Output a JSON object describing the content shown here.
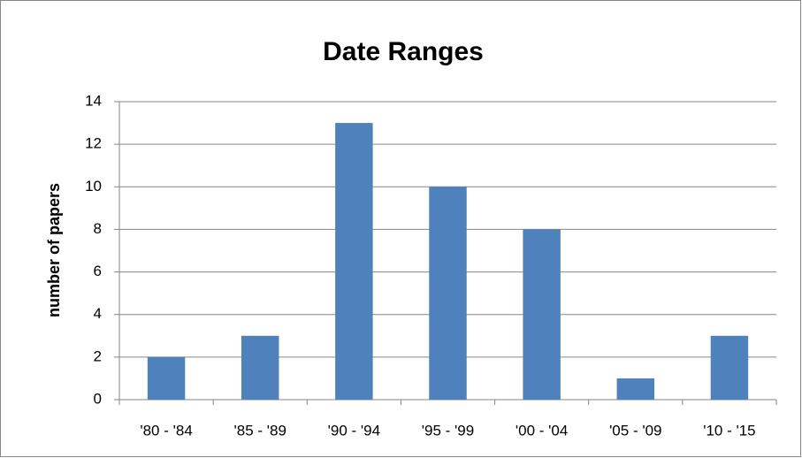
{
  "chart_data": {
    "type": "bar",
    "title": "Date Ranges",
    "y_label": "number of papers",
    "categories": [
      "'80 - '84",
      "'85 - '89",
      "'90 - '94",
      "'95 - '99",
      "'00 - '04",
      "'05 - '09",
      "'10 - '15"
    ],
    "values": [
      2,
      3,
      13,
      10,
      8,
      1,
      3
    ],
    "color": "#4f81bd",
    "ylim": [
      0,
      14
    ],
    "yticks": [
      0,
      2,
      4,
      6,
      8,
      10,
      12,
      14
    ],
    "grid": true
  }
}
